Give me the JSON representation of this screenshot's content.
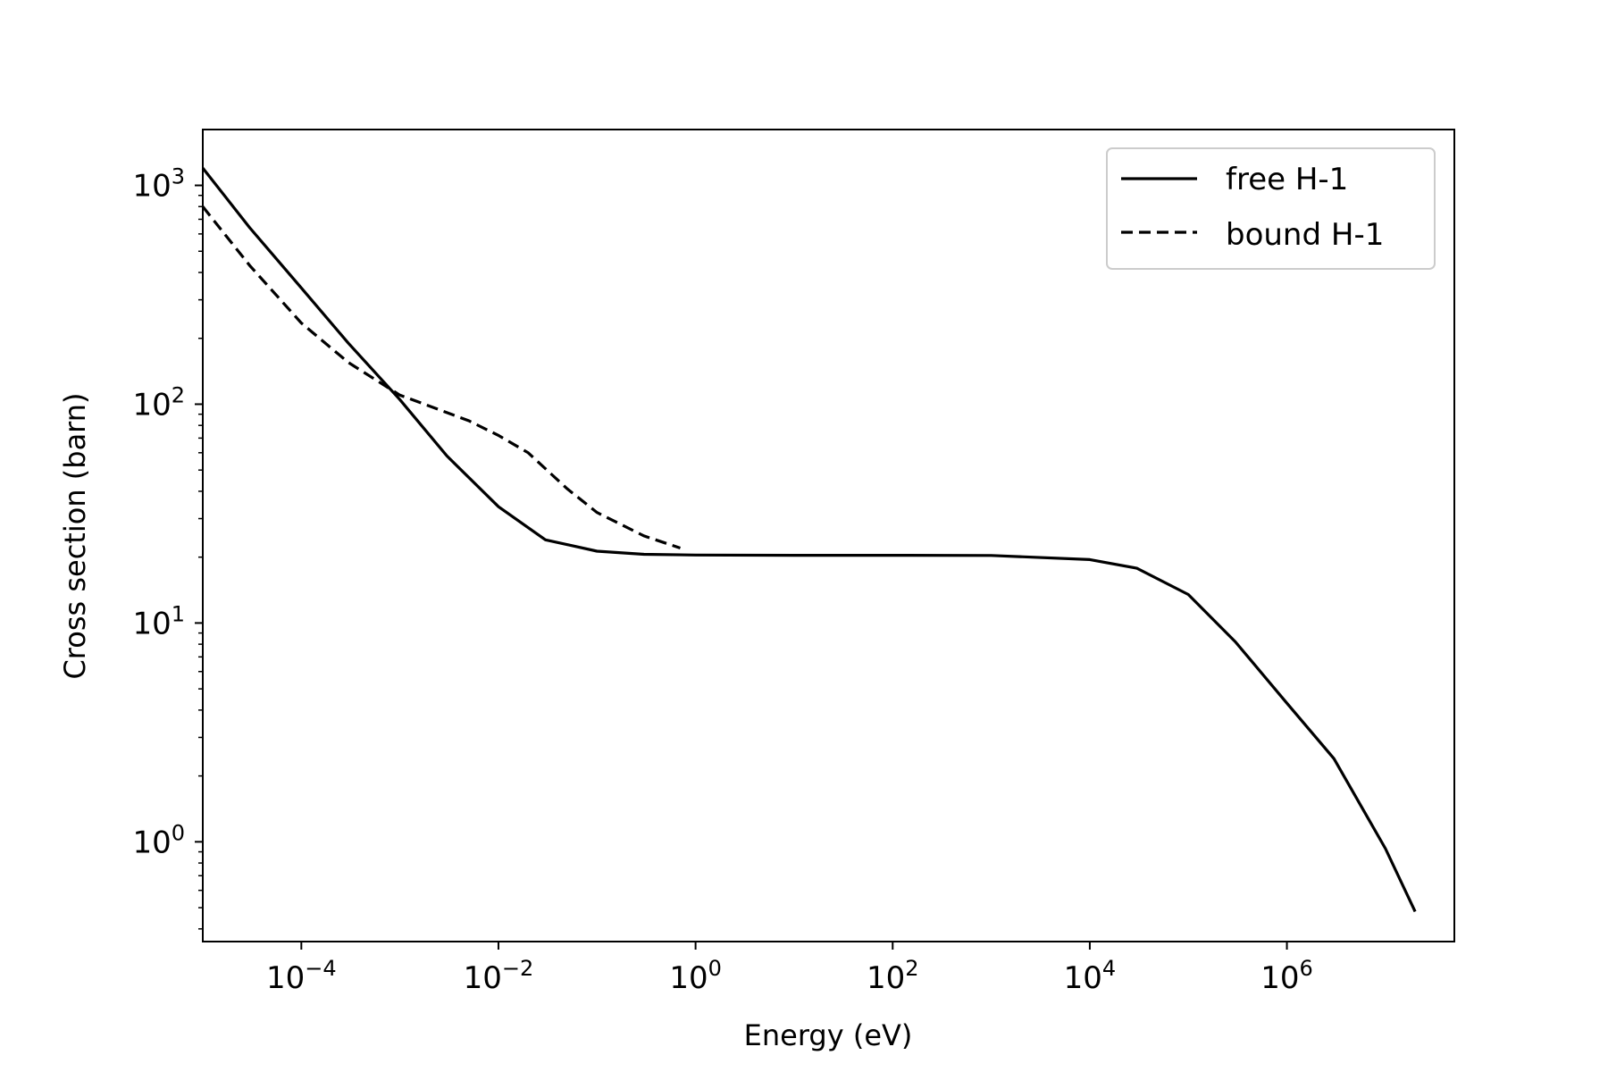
{
  "chart_data": {
    "type": "line",
    "xlabel": "Energy (eV)",
    "ylabel": "Cross section (barn)",
    "xscale": "log",
    "yscale": "log",
    "xlim": [
      1e-05,
      50000000.0
    ],
    "ylim": [
      0.35,
      1800
    ],
    "grid": false,
    "legend_position": "top-right",
    "x_ticks": [
      {
        "value": 0.0001,
        "base": "10",
        "exp": "−4"
      },
      {
        "value": 0.01,
        "base": "10",
        "exp": "−2"
      },
      {
        "value": 1,
        "base": "10",
        "exp": "0"
      },
      {
        "value": 100,
        "base": "10",
        "exp": "2"
      },
      {
        "value": 10000,
        "base": "10",
        "exp": "4"
      },
      {
        "value": 1000000,
        "base": "10",
        "exp": "6"
      }
    ],
    "y_ticks": [
      {
        "value": 1,
        "base": "10",
        "exp": "0"
      },
      {
        "value": 10,
        "base": "10",
        "exp": "1"
      },
      {
        "value": 100,
        "base": "10",
        "exp": "2"
      },
      {
        "value": 1000,
        "base": "10",
        "exp": "3"
      }
    ],
    "series": [
      {
        "name": "free H-1",
        "style": "solid",
        "color": "#000000",
        "x": [
          1e-05,
          3e-05,
          0.0001,
          0.0003,
          0.001,
          0.003,
          0.01,
          0.03,
          0.1,
          0.3,
          1,
          10,
          100,
          1000,
          10000,
          30000,
          100000,
          300000,
          1000000,
          3000000,
          10000000,
          20000000
        ],
        "y": [
          1200,
          640,
          340,
          190,
          105,
          58,
          34,
          24,
          21.3,
          20.6,
          20.45,
          20.4,
          20.4,
          20.35,
          19.5,
          17.8,
          13.5,
          8.2,
          4.3,
          2.4,
          0.93,
          0.48
        ]
      },
      {
        "name": "bound H-1",
        "style": "dashed",
        "color": "#000000",
        "x": [
          1e-05,
          3e-05,
          0.0001,
          0.0003,
          0.001,
          0.002,
          0.005,
          0.01,
          0.02,
          0.05,
          0.1,
          0.3,
          0.7
        ],
        "y": [
          800,
          430,
          235,
          155,
          110,
          98,
          84,
          72,
          60,
          41,
          32,
          25,
          22
        ]
      }
    ]
  }
}
